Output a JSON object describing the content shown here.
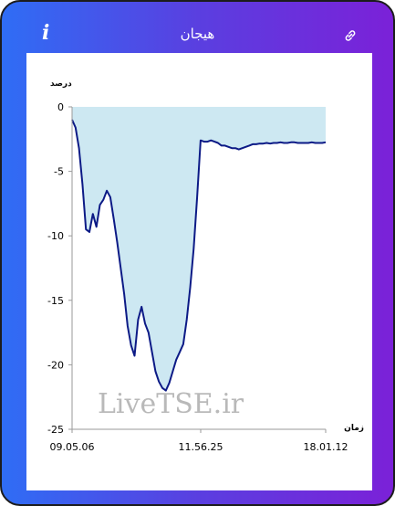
{
  "header": {
    "title": "هیجان",
    "info_icon": "i",
    "link_icon": "link-icon"
  },
  "colors": {
    "gradient_start": "#2f6df5",
    "gradient_end": "#7b21d8",
    "area_fill": "#cde8f2",
    "line": "#0c1a86"
  },
  "watermark": "LiveTSE.ir",
  "chart_data": {
    "type": "area",
    "ylabel": "درصد",
    "xlabel": "زمان",
    "ylim": [
      -25,
      0
    ],
    "yticks": [
      0,
      -5,
      -10,
      -15,
      -20,
      -25
    ],
    "xtick_labels": [
      "09.05.06",
      "11.56.25",
      "18.01.12"
    ],
    "grid": false,
    "x": [
      0,
      1,
      2,
      3,
      4,
      5,
      6,
      7,
      8,
      9,
      10,
      11,
      12,
      13,
      14,
      15,
      16,
      17,
      18,
      19,
      20,
      21,
      22,
      23,
      24,
      25,
      26,
      27,
      28,
      29,
      30,
      31,
      32,
      33,
      34,
      35,
      36,
      37,
      38,
      39,
      40,
      41,
      42,
      43,
      44,
      45,
      46,
      47,
      48,
      49,
      50,
      51,
      52,
      53,
      54,
      55,
      56,
      57,
      58,
      59,
      60,
      61,
      62,
      63,
      64,
      65,
      66,
      67,
      68,
      69,
      70,
      71,
      72,
      73
    ],
    "y": [
      -1,
      -1.6,
      -3.2,
      -6,
      -9.5,
      -9.7,
      -8.3,
      -9.3,
      -7.6,
      -7.2,
      -6.5,
      -7,
      -8.7,
      -10.5,
      -12.5,
      -14.5,
      -17,
      -18.5,
      -19.3,
      -16.5,
      -15.5,
      -16.8,
      -17.5,
      -19,
      -20.5,
      -21.3,
      -21.8,
      -22,
      -21.4,
      -20.5,
      -19.6,
      -19,
      -18.4,
      -16.5,
      -14,
      -11,
      -7,
      -2.6,
      -2.7,
      -2.7,
      -2.6,
      -2.7,
      -2.8,
      -3,
      -3,
      -3.1,
      -3.2,
      -3.2,
      -3.3,
      -3.2,
      -3.1,
      -3,
      -2.9,
      -2.9,
      -2.85,
      -2.85,
      -2.8,
      -2.85,
      -2.8,
      -2.8,
      -2.75,
      -2.8,
      -2.8,
      -2.75,
      -2.75,
      -2.8,
      -2.8,
      -2.8,
      -2.8,
      -2.75,
      -2.8,
      -2.8,
      -2.8,
      -2.75
    ]
  }
}
